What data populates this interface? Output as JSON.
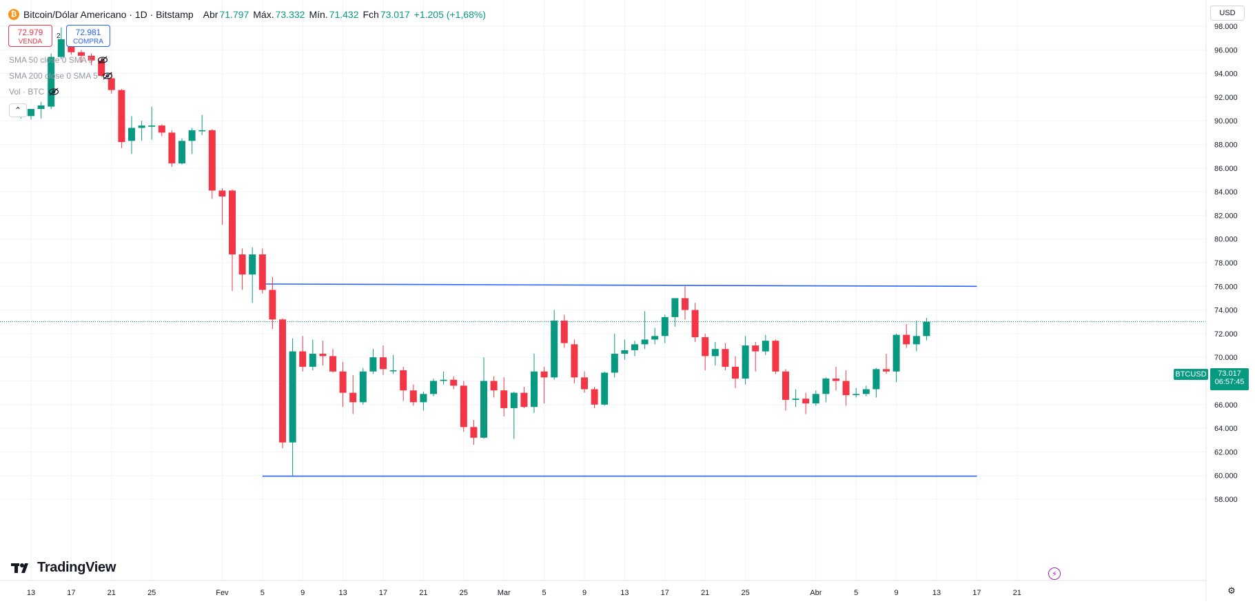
{
  "header": {
    "coin_icon": "bitcoin-icon",
    "title": "Bitcoin/Dólar Americano · 1D · Bitstamp",
    "open_label": "Abr",
    "open_value": "71.797",
    "high_label": "Máx.",
    "high_value": "73.332",
    "low_label": "Mín.",
    "low_value": "71.432",
    "close_label": "Fch",
    "close_value": "73.017",
    "change": "+1.205 (+1,68%)"
  },
  "trade": {
    "sell_price": "72.979",
    "sell_label": "VENDA",
    "buy_price": "72.981",
    "buy_label": "COMPRA",
    "spread": "2"
  },
  "indicators": [
    "SMA 50 close 0 SMA 5",
    "SMA 200 close 0 SMA 5",
    "Vol · BTC"
  ],
  "currency": "USD",
  "symbol_tag": "BTCUSD",
  "last_price": "73.017",
  "countdown": "06:57:45",
  "brand": "TradingView",
  "colors": {
    "up": "#089981",
    "down": "#f23645",
    "line": "#2962ff",
    "text": "#131722"
  },
  "chart_data": {
    "type": "candlestick",
    "ylim": [
      57000,
      99000
    ],
    "yticks": [
      58000,
      60000,
      62000,
      64000,
      66000,
      68000,
      70000,
      72000,
      74000,
      76000,
      78000,
      80000,
      82000,
      84000,
      86000,
      88000,
      90000,
      92000,
      94000,
      96000,
      98000
    ],
    "ytick_labels": [
      "58.000",
      "60.000",
      "62.000",
      "64.000",
      "66.000",
      "68.000",
      "70.000",
      "72.000",
      "74.000",
      "76.000",
      "78.000",
      "80.000",
      "82.000",
      "84.000",
      "86.000",
      "88.000",
      "90.000",
      "92.000",
      "94.000",
      "96.000",
      "98.000"
    ],
    "x_start": "2026-01-13",
    "x_end": "2026-04-25",
    "xtick_labels": [
      {
        "date": "2026-01-13",
        "label": "13"
      },
      {
        "date": "2026-01-17",
        "label": "17"
      },
      {
        "date": "2026-01-21",
        "label": "21"
      },
      {
        "date": "2026-01-25",
        "label": "25"
      },
      {
        "date": "2026-02-01",
        "label": "Fev"
      },
      {
        "date": "2026-02-05",
        "label": "5"
      },
      {
        "date": "2026-02-09",
        "label": "9"
      },
      {
        "date": "2026-02-13",
        "label": "13"
      },
      {
        "date": "2026-02-17",
        "label": "17"
      },
      {
        "date": "2026-02-21",
        "label": "21"
      },
      {
        "date": "2026-02-25",
        "label": "25"
      },
      {
        "date": "2026-03-01",
        "label": "Mar"
      },
      {
        "date": "2026-03-05",
        "label": "5"
      },
      {
        "date": "2026-03-09",
        "label": "9"
      },
      {
        "date": "2026-03-13",
        "label": "13"
      },
      {
        "date": "2026-03-17",
        "label": "17"
      },
      {
        "date": "2026-03-21",
        "label": "21"
      },
      {
        "date": "2026-03-25",
        "label": "25"
      },
      {
        "date": "2026-04-01",
        "label": "Abr"
      },
      {
        "date": "2026-04-05",
        "label": "5"
      },
      {
        "date": "2026-04-09",
        "label": "9"
      },
      {
        "date": "2026-04-13",
        "label": "13"
      },
      {
        "date": "2026-04-17",
        "label": "17"
      },
      {
        "date": "2026-04-21",
        "label": "21"
      }
    ],
    "candles": [
      {
        "date": "2026-01-12",
        "o": 90400,
        "h": 90600,
        "l": 90200,
        "c": 90400
      },
      {
        "date": "2026-01-13",
        "o": 90400,
        "h": 91000,
        "l": 90100,
        "c": 91000
      },
      {
        "date": "2026-01-14",
        "o": 91000,
        "h": 91600,
        "l": 90200,
        "c": 91300
      },
      {
        "date": "2026-01-15",
        "o": 91200,
        "h": 95700,
        "l": 91000,
        "c": 95400
      },
      {
        "date": "2026-01-16",
        "o": 95400,
        "h": 97900,
        "l": 95200,
        "c": 96900
      },
      {
        "date": "2026-01-17",
        "o": 96900,
        "h": 97300,
        "l": 95600,
        "c": 95800
      },
      {
        "date": "2026-01-18",
        "o": 95800,
        "h": 96000,
        "l": 94900,
        "c": 95500
      },
      {
        "date": "2026-01-19",
        "o": 95500,
        "h": 95700,
        "l": 94700,
        "c": 95100
      },
      {
        "date": "2026-01-20",
        "o": 95100,
        "h": 95300,
        "l": 93700,
        "c": 93800
      },
      {
        "date": "2026-01-21",
        "o": 93600,
        "h": 94100,
        "l": 92300,
        "c": 92600
      },
      {
        "date": "2026-01-22",
        "o": 92600,
        "h": 92700,
        "l": 87700,
        "c": 88200
      },
      {
        "date": "2026-01-23",
        "o": 88300,
        "h": 90400,
        "l": 87200,
        "c": 89400
      },
      {
        "date": "2026-01-24",
        "o": 89400,
        "h": 90000,
        "l": 88300,
        "c": 89600
      },
      {
        "date": "2026-01-25",
        "o": 89500,
        "h": 91200,
        "l": 88400,
        "c": 89600
      },
      {
        "date": "2026-01-26",
        "o": 89600,
        "h": 89700,
        "l": 88700,
        "c": 89000
      },
      {
        "date": "2026-01-27",
        "o": 89000,
        "h": 89200,
        "l": 86100,
        "c": 86400
      },
      {
        "date": "2026-01-28",
        "o": 86400,
        "h": 88500,
        "l": 86300,
        "c": 88300
      },
      {
        "date": "2026-01-29",
        "o": 88300,
        "h": 89400,
        "l": 87200,
        "c": 89200
      },
      {
        "date": "2026-01-30",
        "o": 89200,
        "h": 90500,
        "l": 88800,
        "c": 89200
      },
      {
        "date": "2026-01-31",
        "o": 89200,
        "h": 89300,
        "l": 83400,
        "c": 84100
      },
      {
        "date": "2026-02-01",
        "o": 84100,
        "h": 84300,
        "l": 81200,
        "c": 83600
      },
      {
        "date": "2026-02-02",
        "o": 84100,
        "h": 84200,
        "l": 75600,
        "c": 78700
      },
      {
        "date": "2026-02-03",
        "o": 78700,
        "h": 79200,
        "l": 75700,
        "c": 77000
      },
      {
        "date": "2026-02-04",
        "o": 77000,
        "h": 79300,
        "l": 74600,
        "c": 78700
      },
      {
        "date": "2026-02-05",
        "o": 78700,
        "h": 79200,
        "l": 75400,
        "c": 75700
      },
      {
        "date": "2026-02-06",
        "o": 75700,
        "h": 76800,
        "l": 72400,
        "c": 73200
      },
      {
        "date": "2026-02-07",
        "o": 73200,
        "h": 73300,
        "l": 62300,
        "c": 62800
      },
      {
        "date": "2026-02-08",
        "o": 62800,
        "h": 71600,
        "l": 60000,
        "c": 70500
      },
      {
        "date": "2026-02-09",
        "o": 70500,
        "h": 71800,
        "l": 68800,
        "c": 69200
      },
      {
        "date": "2026-02-10",
        "o": 69200,
        "h": 71500,
        "l": 68900,
        "c": 70300
      },
      {
        "date": "2026-02-11",
        "o": 70300,
        "h": 71400,
        "l": 69300,
        "c": 70100
      },
      {
        "date": "2026-02-12",
        "o": 70100,
        "h": 70700,
        "l": 68700,
        "c": 68800
      },
      {
        "date": "2026-02-13",
        "o": 68800,
        "h": 69600,
        "l": 65800,
        "c": 67000
      },
      {
        "date": "2026-02-14",
        "o": 67000,
        "h": 68500,
        "l": 65200,
        "c": 66200
      },
      {
        "date": "2026-02-15",
        "o": 66200,
        "h": 69100,
        "l": 66000,
        "c": 68800
      },
      {
        "date": "2026-02-16",
        "o": 68800,
        "h": 70700,
        "l": 68600,
        "c": 70000
      },
      {
        "date": "2026-02-17",
        "o": 70000,
        "h": 71000,
        "l": 68500,
        "c": 69000
      },
      {
        "date": "2026-02-18",
        "o": 68900,
        "h": 70200,
        "l": 68600,
        "c": 68900
      },
      {
        "date": "2026-02-19",
        "o": 68900,
        "h": 69200,
        "l": 66300,
        "c": 67200
      },
      {
        "date": "2026-02-20",
        "o": 67200,
        "h": 67700,
        "l": 65900,
        "c": 66200
      },
      {
        "date": "2026-02-21",
        "o": 66200,
        "h": 67100,
        "l": 65500,
        "c": 66900
      },
      {
        "date": "2026-02-22",
        "o": 66900,
        "h": 68200,
        "l": 66700,
        "c": 68000
      },
      {
        "date": "2026-02-23",
        "o": 68000,
        "h": 68800,
        "l": 67700,
        "c": 68100
      },
      {
        "date": "2026-02-24",
        "o": 68100,
        "h": 68400,
        "l": 67300,
        "c": 67600
      },
      {
        "date": "2026-02-25",
        "o": 67600,
        "h": 68000,
        "l": 63700,
        "c": 64100
      },
      {
        "date": "2026-02-26",
        "o": 64100,
        "h": 64700,
        "l": 62600,
        "c": 63200
      },
      {
        "date": "2026-02-27",
        "o": 63200,
        "h": 70000,
        "l": 63100,
        "c": 68000
      },
      {
        "date": "2026-02-28",
        "o": 68000,
        "h": 68400,
        "l": 66600,
        "c": 67200
      },
      {
        "date": "2026-03-01",
        "o": 67200,
        "h": 68300,
        "l": 65000,
        "c": 65700
      },
      {
        "date": "2026-03-02",
        "o": 65700,
        "h": 67100,
        "l": 63100,
        "c": 67000
      },
      {
        "date": "2026-03-03",
        "o": 67000,
        "h": 67500,
        "l": 65700,
        "c": 65800
      },
      {
        "date": "2026-03-04",
        "o": 65800,
        "h": 70300,
        "l": 65300,
        "c": 68800
      },
      {
        "date": "2026-03-05",
        "o": 68800,
        "h": 69200,
        "l": 66100,
        "c": 68300
      },
      {
        "date": "2026-03-06",
        "o": 68300,
        "h": 74000,
        "l": 68100,
        "c": 73100
      },
      {
        "date": "2026-03-07",
        "o": 73100,
        "h": 73600,
        "l": 70800,
        "c": 71200
      },
      {
        "date": "2026-03-08",
        "o": 71100,
        "h": 71500,
        "l": 67800,
        "c": 68300
      },
      {
        "date": "2026-03-09",
        "o": 68300,
        "h": 68800,
        "l": 67000,
        "c": 67300
      },
      {
        "date": "2026-03-10",
        "o": 67300,
        "h": 67500,
        "l": 65700,
        "c": 66000
      },
      {
        "date": "2026-03-11",
        "o": 66000,
        "h": 68800,
        "l": 65900,
        "c": 68700
      },
      {
        "date": "2026-03-12",
        "o": 68700,
        "h": 72000,
        "l": 68300,
        "c": 70300
      },
      {
        "date": "2026-03-13",
        "o": 70300,
        "h": 71500,
        "l": 69800,
        "c": 70600
      },
      {
        "date": "2026-03-14",
        "o": 70600,
        "h": 71400,
        "l": 70100,
        "c": 71100
      },
      {
        "date": "2026-03-15",
        "o": 71100,
        "h": 73900,
        "l": 70700,
        "c": 71500
      },
      {
        "date": "2026-03-16",
        "o": 71500,
        "h": 72500,
        "l": 71100,
        "c": 71800
      },
      {
        "date": "2026-03-17",
        "o": 71800,
        "h": 73600,
        "l": 71200,
        "c": 73400
      },
      {
        "date": "2026-03-18",
        "o": 73400,
        "h": 74800,
        "l": 72600,
        "c": 75000
      },
      {
        "date": "2026-03-19",
        "o": 75000,
        "h": 76000,
        "l": 73200,
        "c": 74000
      },
      {
        "date": "2026-03-20",
        "o": 74000,
        "h": 74600,
        "l": 71300,
        "c": 71700
      },
      {
        "date": "2026-03-21",
        "o": 71700,
        "h": 72000,
        "l": 68900,
        "c": 70100
      },
      {
        "date": "2026-03-22",
        "o": 70100,
        "h": 71300,
        "l": 69300,
        "c": 70700
      },
      {
        "date": "2026-03-23",
        "o": 70700,
        "h": 71200,
        "l": 68900,
        "c": 69200
      },
      {
        "date": "2026-03-24",
        "o": 69200,
        "h": 70100,
        "l": 67400,
        "c": 68200
      },
      {
        "date": "2026-03-25",
        "o": 68200,
        "h": 71800,
        "l": 67700,
        "c": 71000
      },
      {
        "date": "2026-03-26",
        "o": 71000,
        "h": 71300,
        "l": 68800,
        "c": 70500
      },
      {
        "date": "2026-03-27",
        "o": 70500,
        "h": 71900,
        "l": 70200,
        "c": 71400
      },
      {
        "date": "2026-03-28",
        "o": 71400,
        "h": 71500,
        "l": 68600,
        "c": 68800
      },
      {
        "date": "2026-03-29",
        "o": 68800,
        "h": 69000,
        "l": 65500,
        "c": 66400
      },
      {
        "date": "2026-03-30",
        "o": 66400,
        "h": 67300,
        "l": 65800,
        "c": 66500
      },
      {
        "date": "2026-03-31",
        "o": 66500,
        "h": 67000,
        "l": 65200,
        "c": 66100
      },
      {
        "date": "2026-04-01",
        "o": 66100,
        "h": 67200,
        "l": 65900,
        "c": 66900
      },
      {
        "date": "2026-04-02",
        "o": 66900,
        "h": 68300,
        "l": 66200,
        "c": 68200
      },
      {
        "date": "2026-04-03",
        "o": 68200,
        "h": 69200,
        "l": 67200,
        "c": 68000
      },
      {
        "date": "2026-04-04",
        "o": 68000,
        "h": 68900,
        "l": 65900,
        "c": 66800
      },
      {
        "date": "2026-04-05",
        "o": 66800,
        "h": 67400,
        "l": 66600,
        "c": 66900
      },
      {
        "date": "2026-04-06",
        "o": 66900,
        "h": 67600,
        "l": 66700,
        "c": 67300
      },
      {
        "date": "2026-04-07",
        "o": 67300,
        "h": 69100,
        "l": 66600,
        "c": 69000
      },
      {
        "date": "2026-04-08",
        "o": 69000,
        "h": 70300,
        "l": 68600,
        "c": 68800
      },
      {
        "date": "2026-04-09",
        "o": 68800,
        "h": 72000,
        "l": 67900,
        "c": 71900
      },
      {
        "date": "2026-04-10",
        "o": 71900,
        "h": 72800,
        "l": 70800,
        "c": 71100
      },
      {
        "date": "2026-04-11",
        "o": 71100,
        "h": 73100,
        "l": 70500,
        "c": 71800
      },
      {
        "date": "2026-04-12",
        "o": 71797,
        "h": 73332,
        "l": 71432,
        "c": 73017
      }
    ],
    "trendlines": [
      {
        "name": "resistance",
        "x1": "2026-02-05",
        "y1": 76200,
        "x2": "2026-04-17",
        "y2": 76000
      },
      {
        "name": "support",
        "x1": "2026-02-05",
        "y1": 59950,
        "x2": "2026-04-17",
        "y2": 59950
      }
    ],
    "last_price_line": 73017,
    "grid": true
  }
}
